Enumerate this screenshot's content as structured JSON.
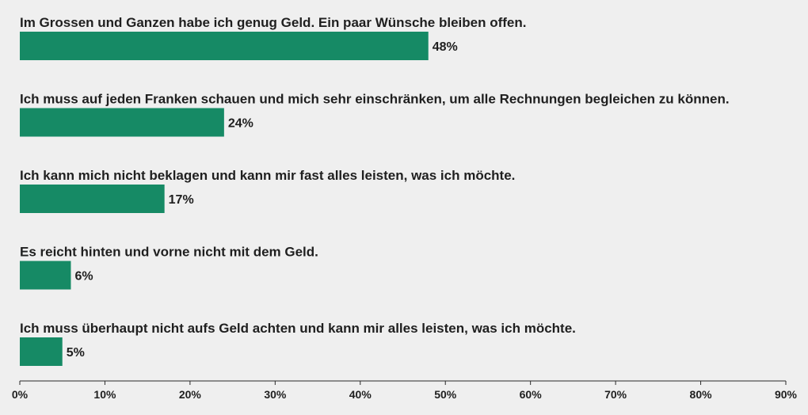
{
  "chart_data": {
    "type": "bar",
    "orientation": "horizontal",
    "categories": [
      "Im Grossen und Ganzen habe ich genug Geld. Ein paar Wünsche bleiben offen.",
      "Ich muss auf jeden Franken schauen und mich sehr einschränken, um alle Rechnungen begleichen zu können.",
      "Ich kann mich nicht beklagen und kann mir fast alles leisten, was ich möchte.",
      "Es reicht hinten und vorne nicht mit dem Geld.",
      "Ich muss überhaupt nicht aufs Geld achten und kann mir alles leisten, was ich möchte."
    ],
    "values": [
      48,
      24,
      17,
      6,
      5
    ],
    "value_labels": [
      "48%",
      "24%",
      "17%",
      "6%",
      "5%"
    ],
    "xlim": [
      0,
      90
    ],
    "xticks": [
      "0%",
      "10%",
      "20%",
      "30%",
      "40%",
      "50%",
      "60%",
      "70%",
      "80%",
      "90%"
    ],
    "grid": false,
    "bar_color": "#168a65"
  }
}
